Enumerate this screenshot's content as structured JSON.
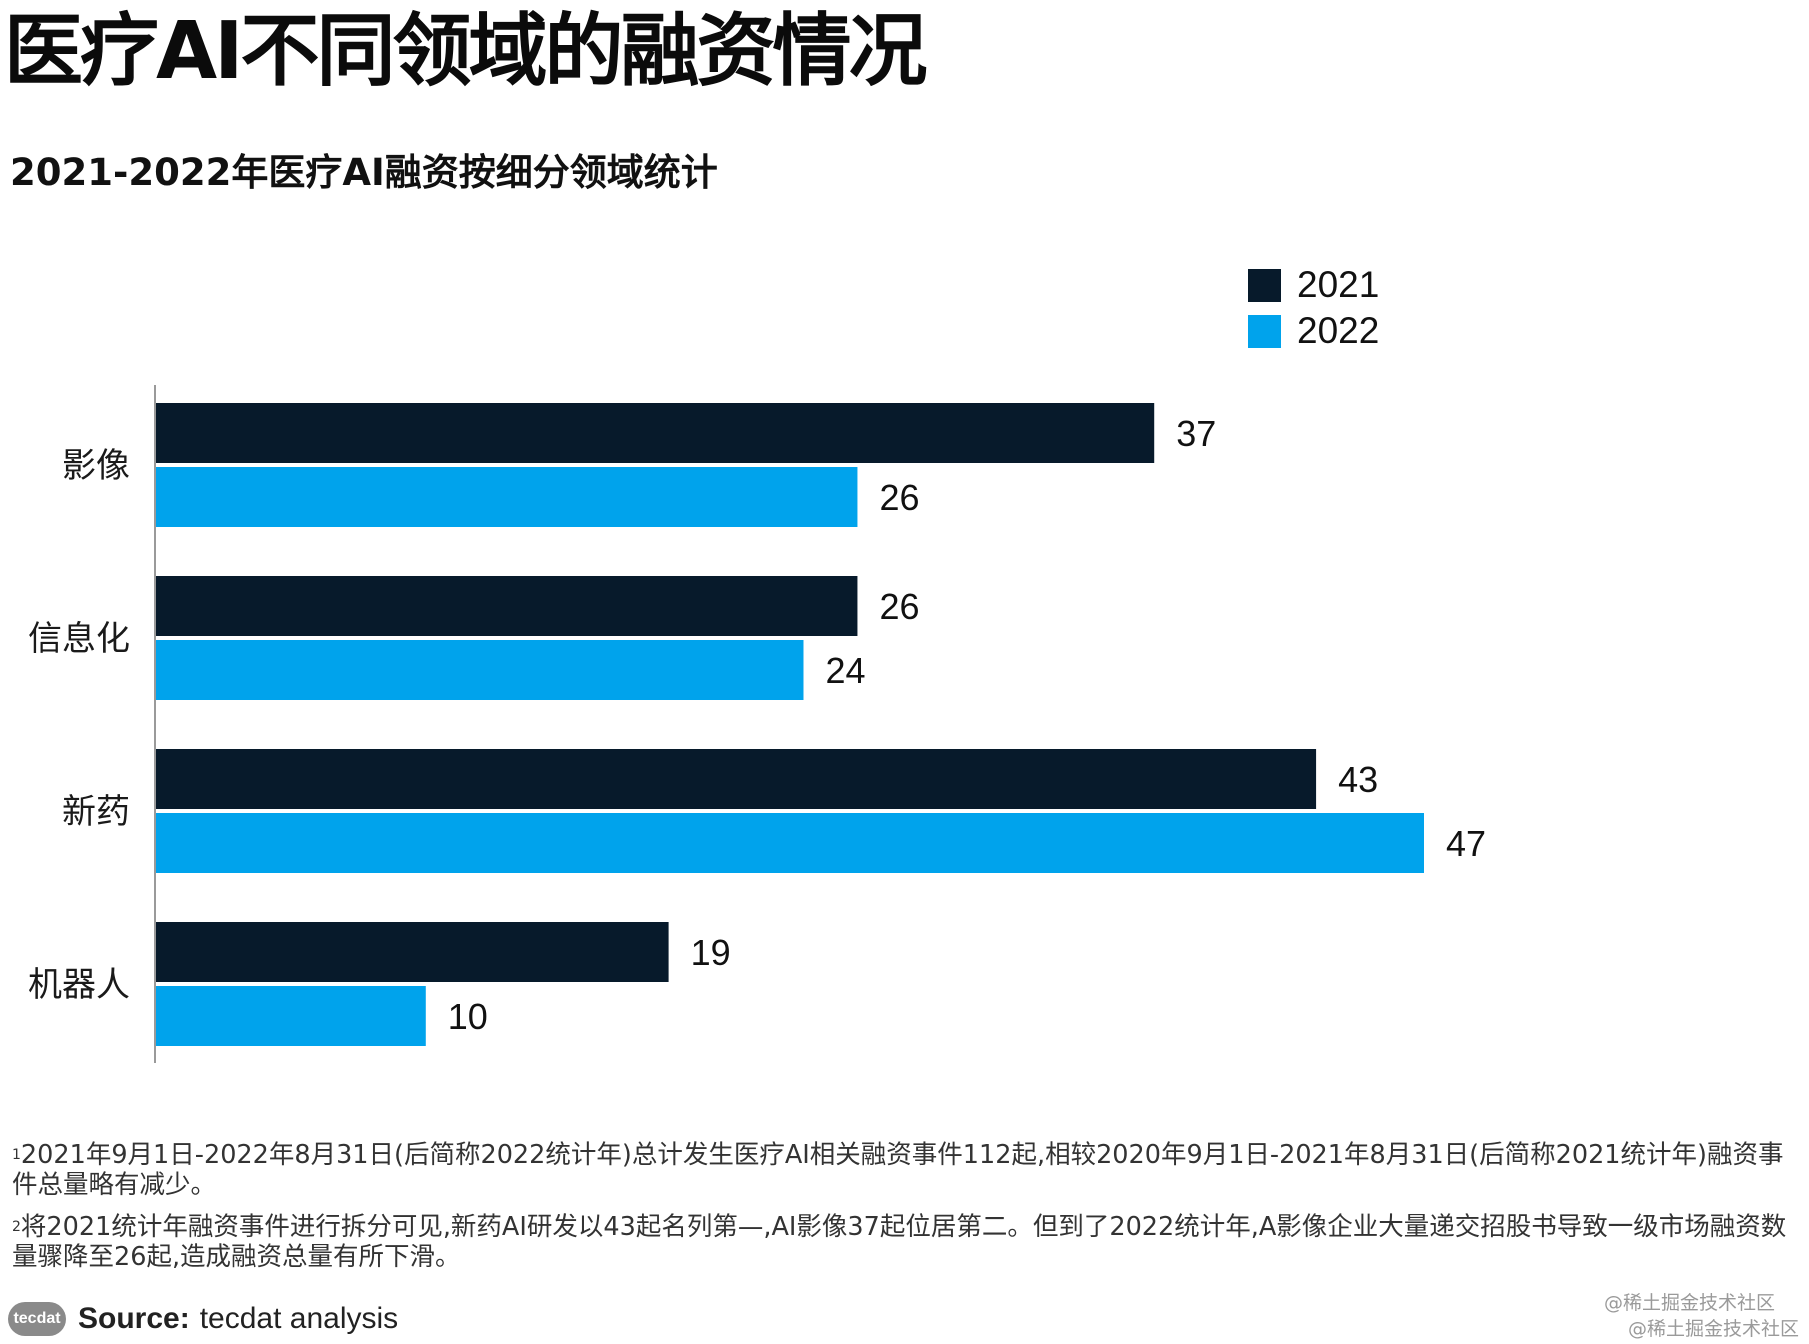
{
  "title": "医疗AI不同领域的融资情况",
  "subtitle": "2021-2022年医疗AI融资按细分领域统计",
  "colors": {
    "s2021": "#071a2b",
    "s2022": "#00a3ec"
  },
  "chart_data": {
    "type": "bar",
    "orientation": "horizontal",
    "categories": [
      "影像",
      "信息化",
      "新药",
      "机器人"
    ],
    "series": [
      {
        "name": "2021",
        "values": [
          37,
          26,
          43,
          19
        ]
      },
      {
        "name": "2022",
        "values": [
          26,
          24,
          47,
          10
        ]
      }
    ],
    "xlim": [
      0,
      47
    ],
    "grid": false,
    "legend_position": "top-right",
    "data_labels": true
  },
  "notes": [
    {
      "marker": "1",
      "text": "2021年9月1日-2022年8月31日(后简称2022统计年)总计发生医疗AI相关融资事件112起,相较2020年9月1日-2021年8月31日(后简称2021统计年)融资事件总量略有减少。"
    },
    {
      "marker": "2",
      "text": "将2021统计年融资事件进行拆分可见,新药AI研发以43起名列第—,AI影像37起位居第二。但到了2022统计年,A影像企业大量递交招股书导致一级市场融资数量骤降至26起,造成融资总量有所下滑。"
    }
  ],
  "source": {
    "logo": "tecdat",
    "label": "Source:",
    "text": "tecdat analysis"
  },
  "watermarks": [
    "@稀土掘金技术社区",
    "@稀土掘金技术社区"
  ]
}
